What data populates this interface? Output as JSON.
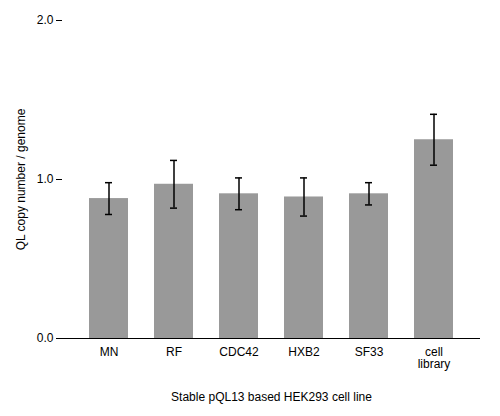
{
  "chart_data": {
    "type": "bar",
    "categories": [
      "MN",
      "RF",
      "CDC42",
      "HXB2",
      "SF33",
      "cell\nlibrary"
    ],
    "values": [
      0.88,
      0.97,
      0.91,
      0.89,
      0.91,
      1.25
    ],
    "errors": [
      0.1,
      0.15,
      0.1,
      0.12,
      0.07,
      0.16
    ],
    "color": "#999999",
    "xlabel": "Stable pQL13 based HEK293 cell line",
    "ylabel": "QL copy number / genome",
    "ylim": [
      0,
      2.0
    ],
    "yticks": [
      0,
      1,
      2
    ],
    "grid": false
  }
}
